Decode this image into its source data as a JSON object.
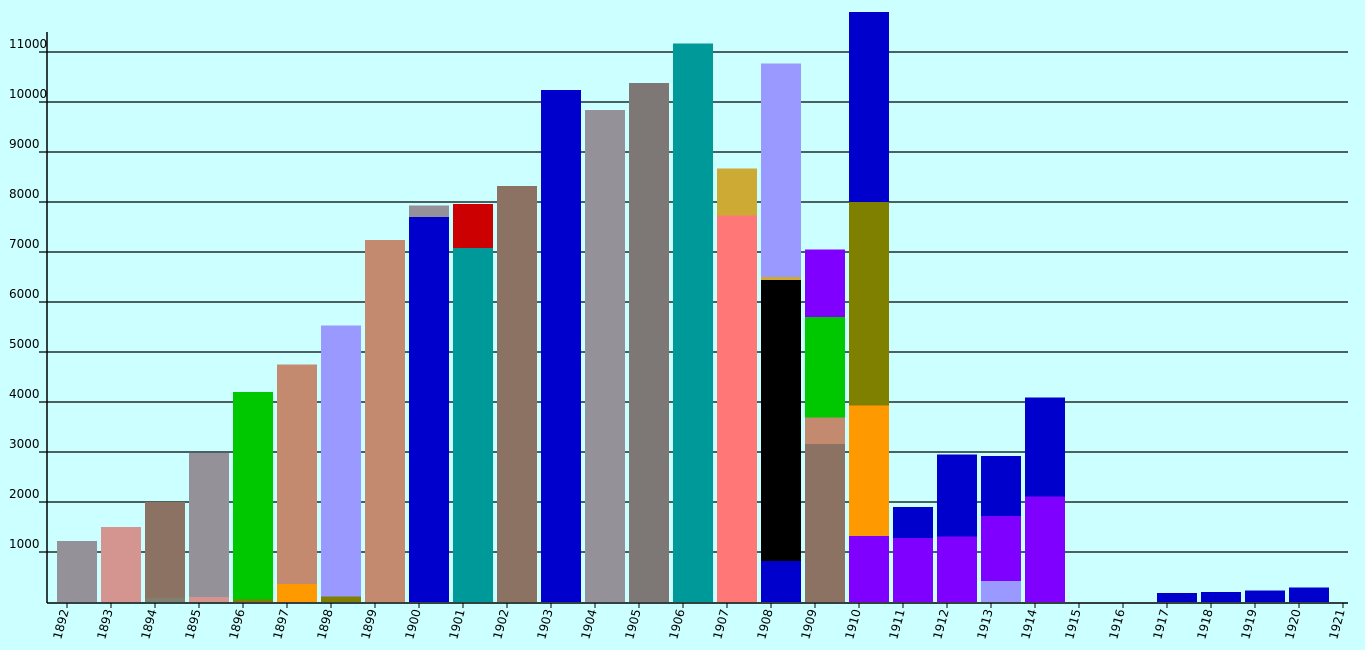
{
  "chart_data": {
    "type": "bar",
    "stacked": true,
    "ylim": [
      0,
      11000
    ],
    "yticks": [
      "1000",
      "2000",
      "3000",
      "4000",
      "5000",
      "6000",
      "7000",
      "8000",
      "9000",
      "10000",
      "11000"
    ],
    "grid": true,
    "categories": [
      "1892",
      "1893",
      "1894",
      "1895",
      "1896",
      "1897",
      "1898",
      "1899",
      "1900",
      "1901",
      "1902",
      "1903",
      "1904",
      "1905",
      "1906",
      "1907",
      "1908",
      "1909",
      "1910",
      "1911",
      "1912",
      "1913",
      "1914",
      "1915",
      "1916",
      "1917",
      "1918",
      "1919",
      "1920"
    ],
    "x_tick_labels": [
      "1892",
      "1893",
      "1894",
      "1895",
      "1896",
      "1897",
      "1898",
      "1899",
      "1900",
      "1901",
      "1902",
      "1903",
      "1904",
      "1905",
      "1906",
      "1907",
      "1908",
      "1909",
      "1910",
      "1911",
      "1912",
      "1913",
      "1914",
      "1915",
      "1916",
      "1917",
      "1918",
      "1919",
      "1920",
      "1921"
    ],
    "stacks": [
      [
        {
          "value": 1220,
          "color": "#959198"
        }
      ],
      [
        {
          "value": 1500,
          "color": "#d4948f"
        }
      ],
      [
        {
          "value": 80,
          "color": "#808070"
        },
        {
          "value": 1920,
          "color": "#8b7262"
        }
      ],
      [
        {
          "value": 100,
          "color": "#d4948f"
        },
        {
          "value": 2880,
          "color": "#959198"
        }
      ],
      [
        {
          "value": 50,
          "color": "#808000"
        },
        {
          "value": 4150,
          "color": "#00c800"
        }
      ],
      [
        {
          "value": 360,
          "color": "#ff9900"
        },
        {
          "value": 4390,
          "color": "#c48a70"
        }
      ],
      [
        {
          "value": 110,
          "color": "#808000"
        },
        {
          "value": 5420,
          "color": "#9999ff"
        }
      ],
      [
        {
          "value": 7240,
          "color": "#c48a70"
        }
      ],
      [
        {
          "value": 7700,
          "color": "#0000cc"
        },
        {
          "value": 230,
          "color": "#959198"
        }
      ],
      [
        {
          "value": 7080,
          "color": "#009999"
        },
        {
          "value": 880,
          "color": "#cc0000"
        }
      ],
      [
        {
          "value": 8320,
          "color": "#8b7262"
        }
      ],
      [
        {
          "value": 10240,
          "color": "#0000cc"
        }
      ],
      [
        {
          "value": 9840,
          "color": "#959198"
        }
      ],
      [
        {
          "value": 10380,
          "color": "#7d7775"
        }
      ],
      [
        {
          "value": 11170,
          "color": "#009999"
        }
      ],
      [
        {
          "value": 7730,
          "color": "#ff7777"
        },
        {
          "value": 940,
          "color": "#ccaa33"
        }
      ],
      [
        {
          "value": 820,
          "color": "#0000cc"
        },
        {
          "value": 5620,
          "color": "#000000"
        },
        {
          "value": 60,
          "color": "#ccaa33"
        },
        {
          "value": 4270,
          "color": "#9999ff"
        }
      ],
      [
        {
          "value": 3160,
          "color": "#8b7262"
        },
        {
          "value": 530,
          "color": "#c48a70"
        },
        {
          "value": 2010,
          "color": "#00c800"
        },
        {
          "value": 1350,
          "color": "#8000ff"
        }
      ],
      [
        {
          "value": 1320,
          "color": "#8000ff"
        },
        {
          "value": 2610,
          "color": "#ff9900"
        },
        {
          "value": 4070,
          "color": "#808000"
        },
        {
          "value": 3800,
          "color": "#0000cc"
        }
      ],
      [
        {
          "value": 1280,
          "color": "#8000ff"
        },
        {
          "value": 620,
          "color": "#0000cc"
        }
      ],
      [
        {
          "value": 1310,
          "color": "#8000ff"
        },
        {
          "value": 1640,
          "color": "#0000cc"
        }
      ],
      [
        {
          "value": 420,
          "color": "#9999ff"
        },
        {
          "value": 1300,
          "color": "#8000ff"
        },
        {
          "value": 1200,
          "color": "#0000cc"
        }
      ],
      [
        {
          "value": 2110,
          "color": "#8000ff"
        },
        {
          "value": 1980,
          "color": "#0000cc"
        }
      ],
      [],
      [],
      [
        {
          "value": 180,
          "color": "#0000cc"
        }
      ],
      [
        {
          "value": 200,
          "color": "#0000cc"
        }
      ],
      [
        {
          "value": 230,
          "color": "#0000cc"
        }
      ],
      [
        {
          "value": 290,
          "color": "#0000cc"
        }
      ]
    ]
  }
}
